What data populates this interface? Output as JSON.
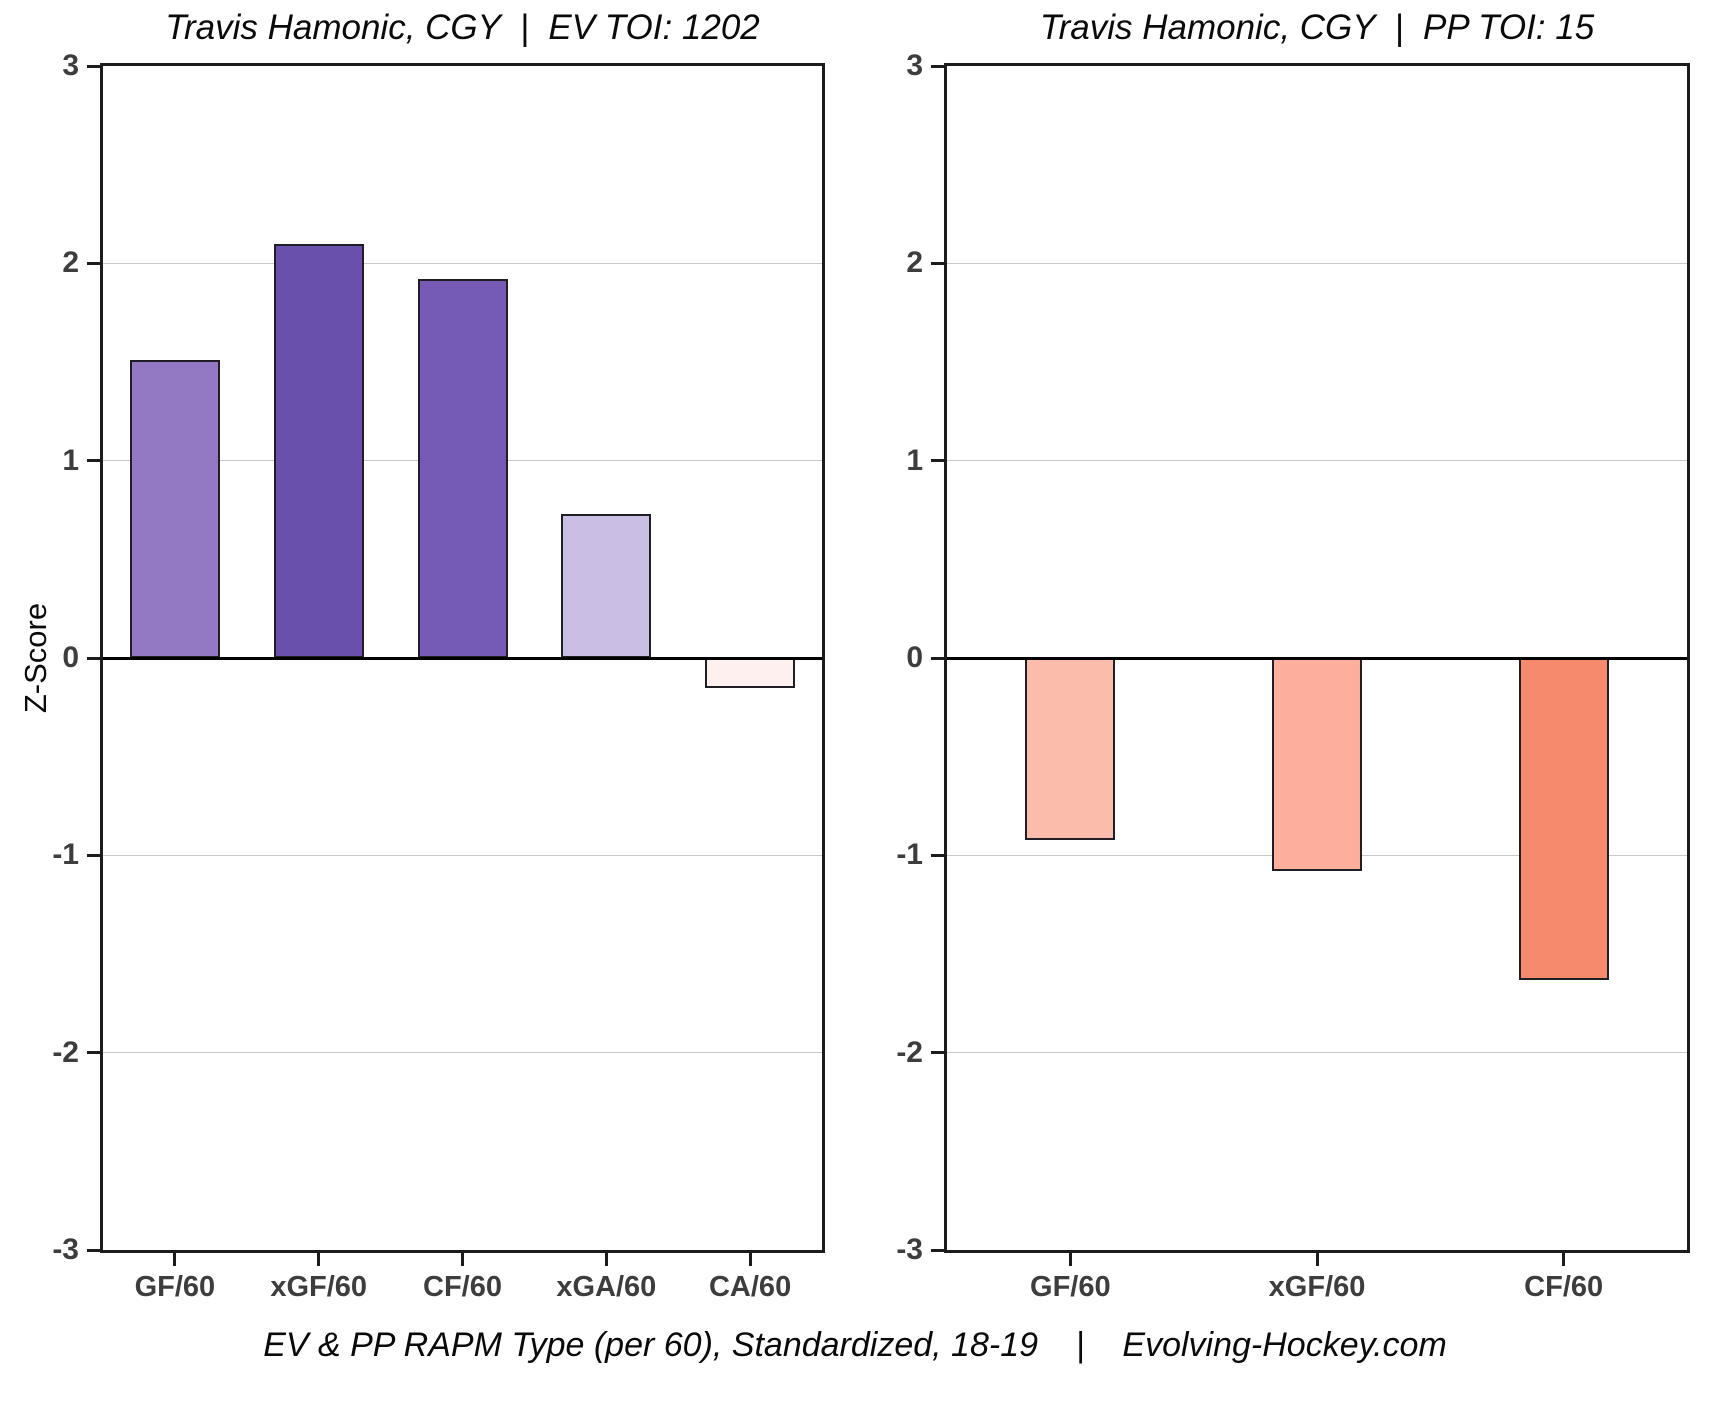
{
  "page": {
    "background": "#ffffff",
    "caption": "EV & PP RAPM Type (per 60), Standardized, 18-19    |    Evolving-Hockey.com"
  },
  "chart_data": [
    {
      "type": "bar",
      "title": "Travis Hamonic, CGY  |  EV TOI: 1202",
      "categories": [
        "GF/60",
        "xGF/60",
        "CF/60",
        "xGA/60",
        "CA/60"
      ],
      "values": [
        1.51,
        2.1,
        1.92,
        0.73,
        -0.15
      ],
      "bar_colors": [
        "#9379c4",
        "#6950ad",
        "#755bb5",
        "#cabee4",
        "#fdf0ee"
      ],
      "bar_outline": "#1e1e24",
      "ylabel": "Z-Score",
      "ylim": [
        -3,
        3
      ],
      "yticks": [
        3,
        2,
        1,
        0,
        -1,
        -2,
        -3
      ],
      "grid": true,
      "legend": "none"
    },
    {
      "type": "bar",
      "title": "Travis Hamonic, CGY  |  PP TOI: 15",
      "categories": [
        "GF/60",
        "xGF/60",
        "CF/60"
      ],
      "values": [
        -0.92,
        -1.08,
        -1.63
      ],
      "bar_colors": [
        "#fcbcab",
        "#fcb09c",
        "#f58a6d"
      ],
      "bar_outline": "#1e1e24",
      "ylabel": "",
      "ylim": [
        -3,
        3
      ],
      "yticks": [
        3,
        2,
        1,
        0,
        -1,
        -2,
        -3
      ],
      "grid": true,
      "legend": "none"
    }
  ]
}
